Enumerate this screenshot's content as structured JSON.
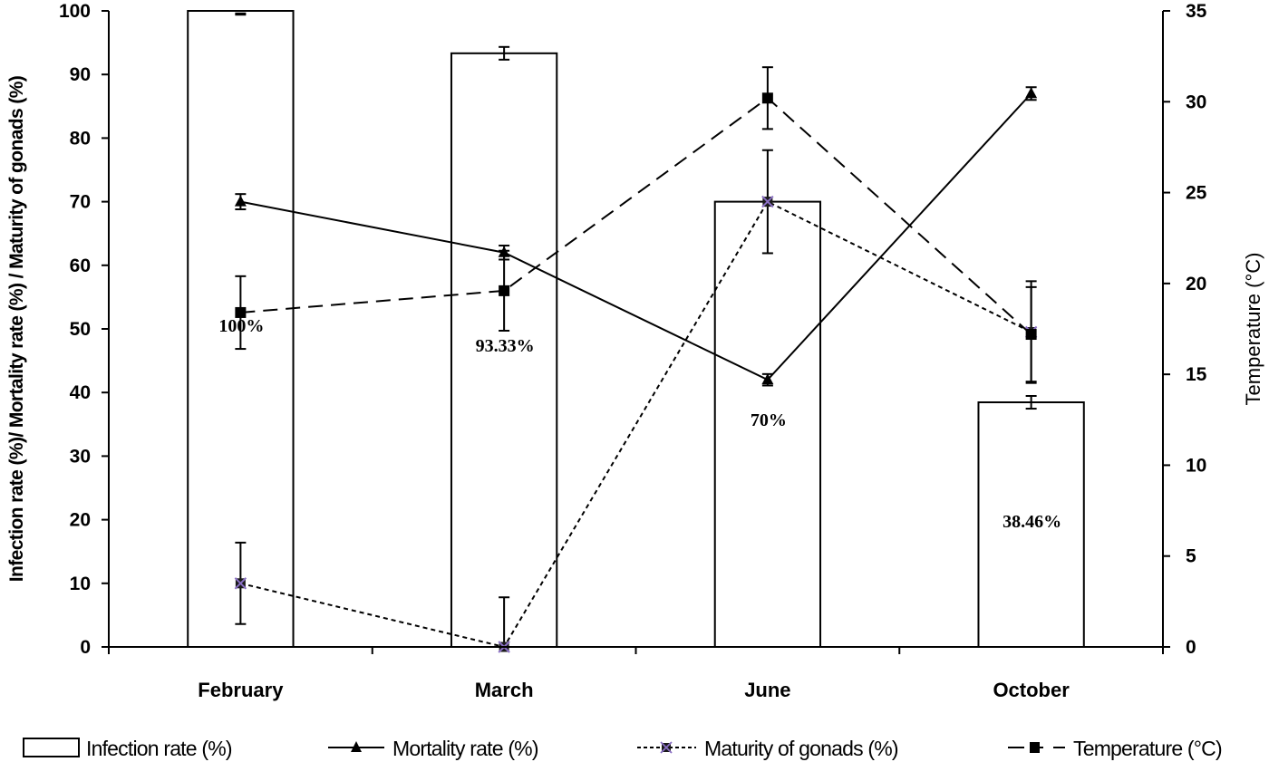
{
  "chart_data": {
    "type": "bar+line",
    "title": "",
    "categories": [
      "February",
      "March",
      "June",
      "October"
    ],
    "xlabel": "",
    "ylabel": "Infection rate (%)/ Mortality rate (%)  / Maturity of gonads (%)",
    "ylabel_right": "Temperature (°C)",
    "ylim": [
      0,
      100
    ],
    "ylim_right": [
      0,
      35
    ],
    "yticks": [
      0,
      10,
      20,
      30,
      40,
      50,
      60,
      70,
      80,
      90,
      100
    ],
    "yticks_right": [
      0,
      5,
      10,
      15,
      20,
      25,
      30,
      35
    ],
    "grid": false,
    "legend_position": "bottom",
    "series": [
      {
        "name": "Infection rate (%)",
        "type": "bar",
        "axis": "left",
        "values": [
          100,
          93.33,
          70,
          38.46
        ],
        "errors": [
          0.6,
          1,
          0,
          1
        ],
        "data_labels": [
          "100%",
          "93.33%",
          "70%",
          "38.46%"
        ],
        "color": "#ffffff",
        "edge_color": "#000000"
      },
      {
        "name": "Mortality rate (%)",
        "type": "line",
        "axis": "left",
        "values": [
          70,
          62,
          42,
          87
        ],
        "errors": [
          1.2,
          1.1,
          0.9,
          1
        ],
        "line_style": "solid",
        "marker": "triangle",
        "color": "#000000"
      },
      {
        "name": "Maturity of gonads (%)",
        "type": "line",
        "axis": "left",
        "values": [
          10,
          0,
          70,
          49.5
        ],
        "errors": [
          6.4,
          7.8,
          8.1,
          8
        ],
        "line_style": "short-dash",
        "marker": "x-square",
        "color": "#000000",
        "marker_color": "#8a6fc4"
      },
      {
        "name": "Temperature (°C)",
        "type": "line",
        "axis": "right",
        "values": [
          18.4,
          19.6,
          30.2,
          17.2
        ],
        "errors": [
          2.0,
          2.2,
          1.7,
          2.6
        ],
        "line_style": "long-dash",
        "marker": "square",
        "color": "#000000"
      }
    ]
  },
  "legend": {
    "items": [
      {
        "label": "Infection rate (%)"
      },
      {
        "label": "Mortality rate (%)"
      },
      {
        "label": "Maturity of gonads (%)"
      },
      {
        "label": "Temperature (°C)"
      }
    ]
  }
}
